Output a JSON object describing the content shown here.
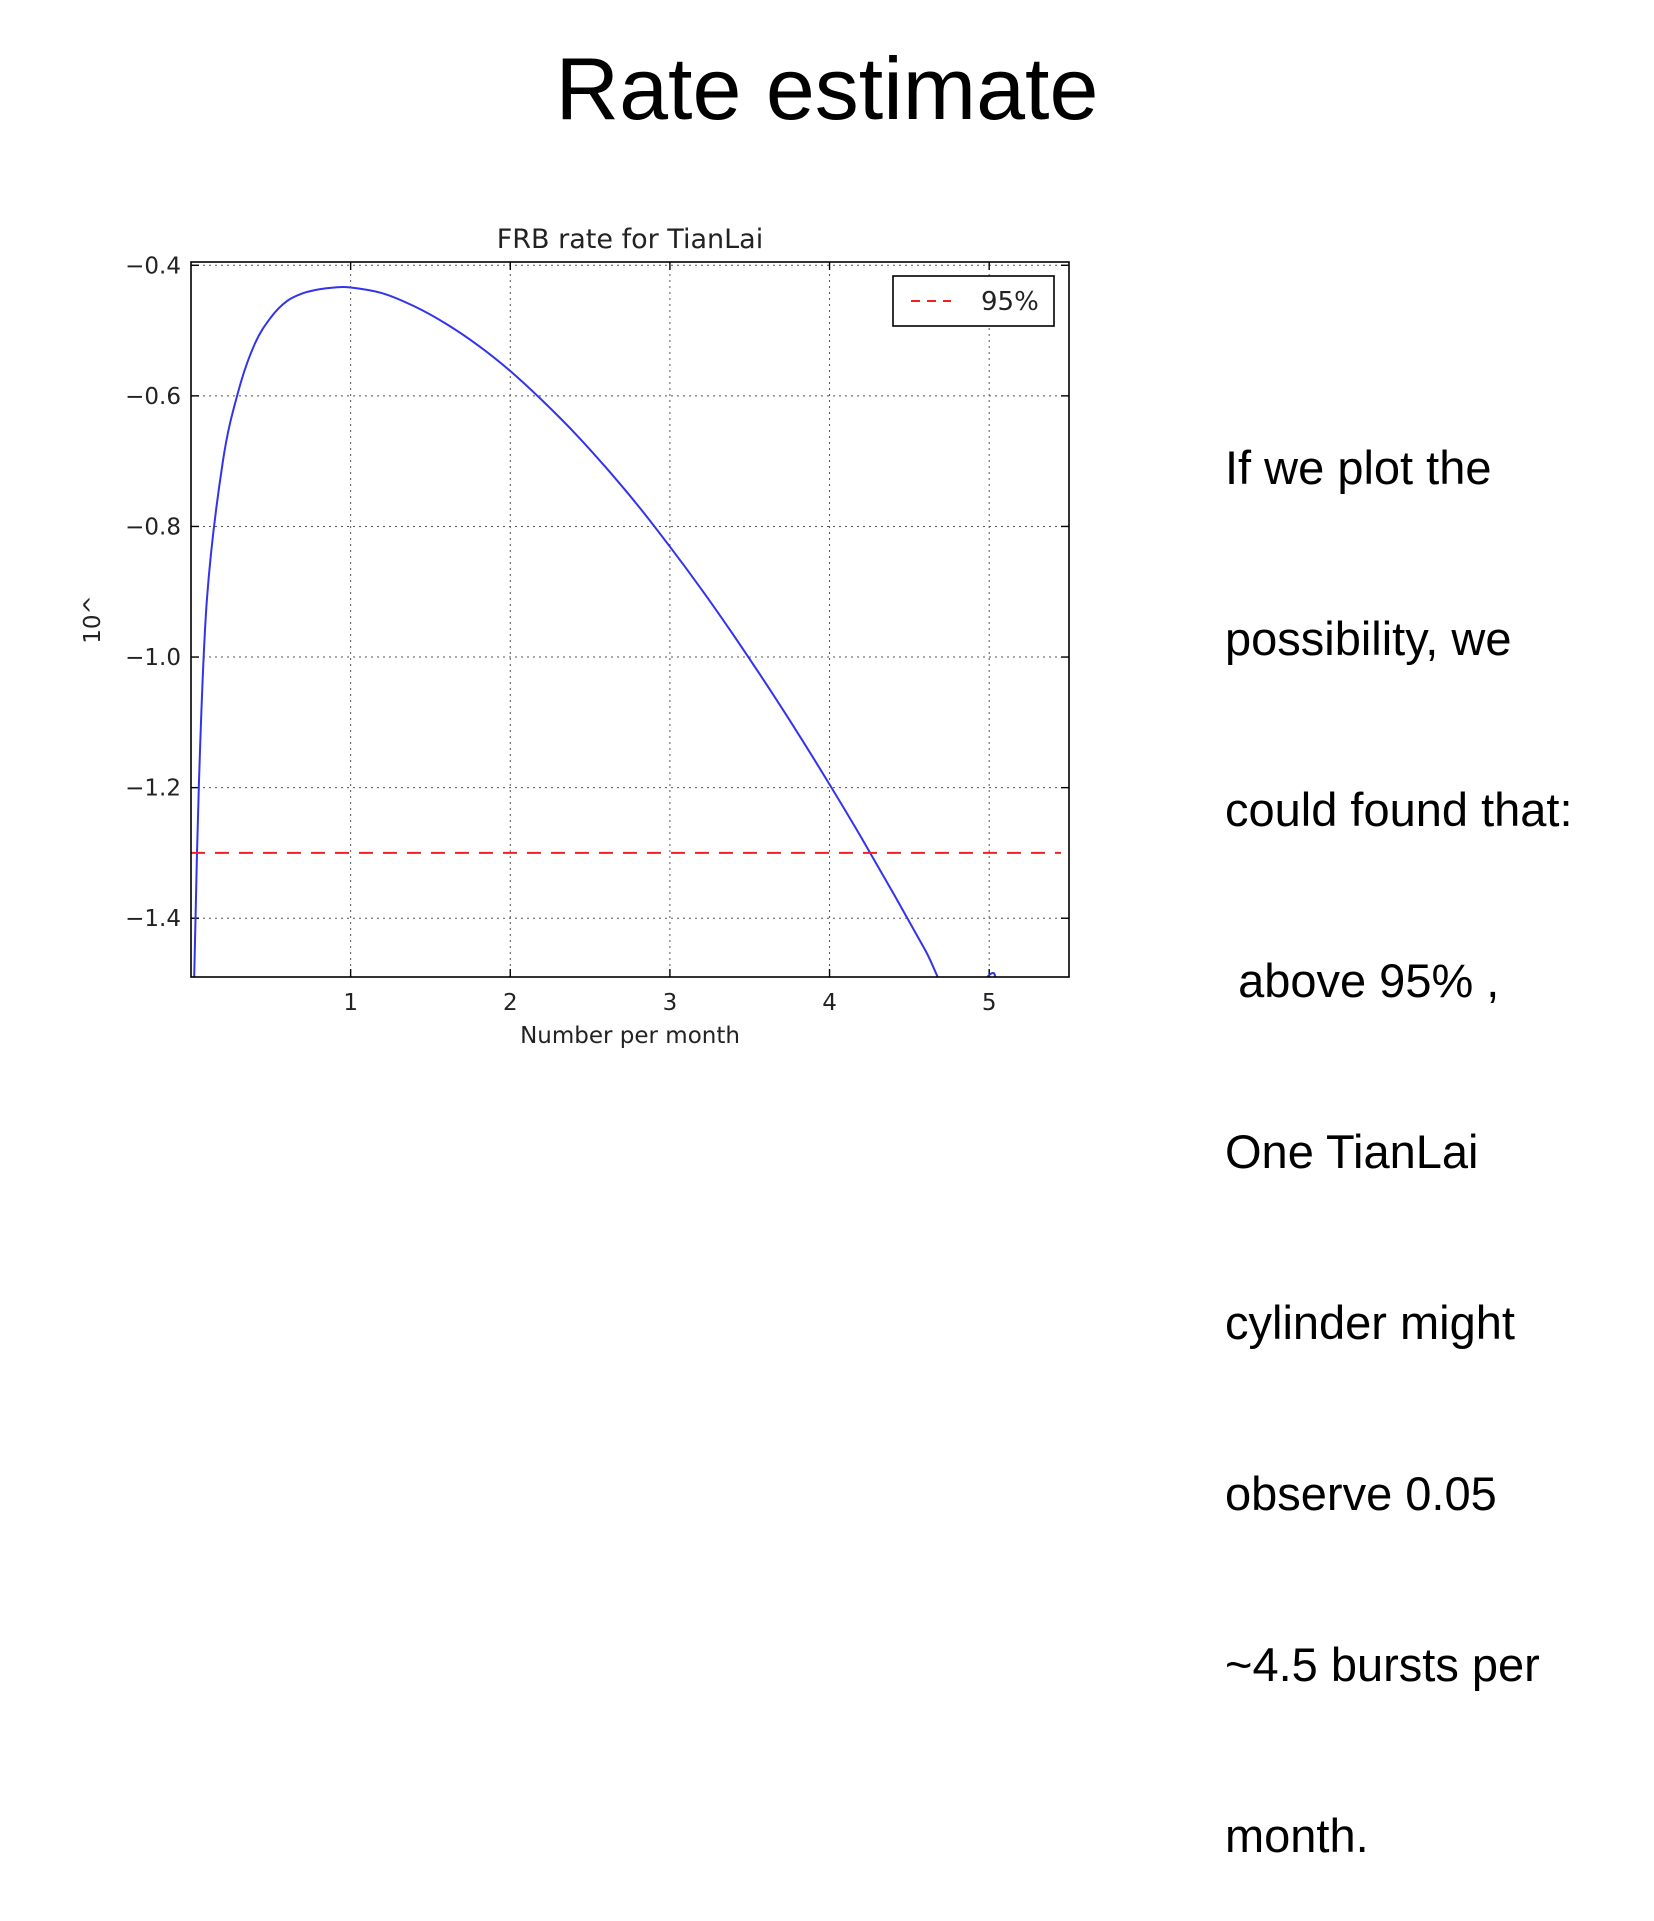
{
  "slide": {
    "title": "Rate estimate",
    "text_lines": [
      "If we plot the",
      "possibility, we",
      "could found that:",
      " above 95% ,",
      "One TianLai",
      "cylinder might",
      "observe 0.05",
      "~4.5 bursts per",
      "month."
    ]
  },
  "chart_data": {
    "type": "line",
    "title": "FRB rate for TianLai",
    "xlabel": "Number per month",
    "ylabel": "10^",
    "xlim": [
      0,
      5.5
    ],
    "ylim": [
      -1.49,
      -0.395
    ],
    "xticks": [
      1,
      2,
      3,
      4,
      5
    ],
    "yticks": [
      -0.4,
      -0.6,
      -0.8,
      -1.0,
      -1.2,
      -1.4
    ],
    "ytick_labels": [
      "−0.4",
      "−0.6",
      "−0.8",
      "−1.0",
      "−1.2",
      "−1.4"
    ],
    "xtick_labels": [
      "1",
      "2",
      "3",
      "4",
      "5"
    ],
    "grid": true,
    "legend_position": "top-right",
    "series": [
      {
        "kind": "curve",
        "color": "#3333ee",
        "x": [
          0.02,
          0.05,
          0.1,
          0.2,
          0.3,
          0.4,
          0.5,
          0.6,
          0.7,
          0.8,
          0.9,
          1.0,
          1.2,
          1.4,
          1.6,
          1.8,
          2.0,
          2.2,
          2.4,
          2.6,
          2.8,
          3.0,
          3.2,
          3.4,
          3.6,
          3.8,
          4.0,
          4.2,
          4.4,
          4.6,
          4.8,
          5.0,
          5.04
        ],
        "y": [
          -1.49,
          -1.19,
          -0.91,
          -0.7,
          -0.59,
          -0.52,
          -0.48,
          -0.455,
          -0.443,
          -0.437,
          -0.434,
          -0.434,
          -0.443,
          -0.463,
          -0.49,
          -0.523,
          -0.562,
          -0.607,
          -0.656,
          -0.71,
          -0.768,
          -0.831,
          -0.897,
          -0.967,
          -1.04,
          -1.116,
          -1.195,
          -1.277,
          -1.362,
          -1.449,
          -1.539,
          -1.487,
          -1.49
        ]
      },
      {
        "kind": "hline",
        "name": "95%",
        "color": "#ee2222",
        "style": "dashed",
        "y": -1.3
      }
    ]
  }
}
